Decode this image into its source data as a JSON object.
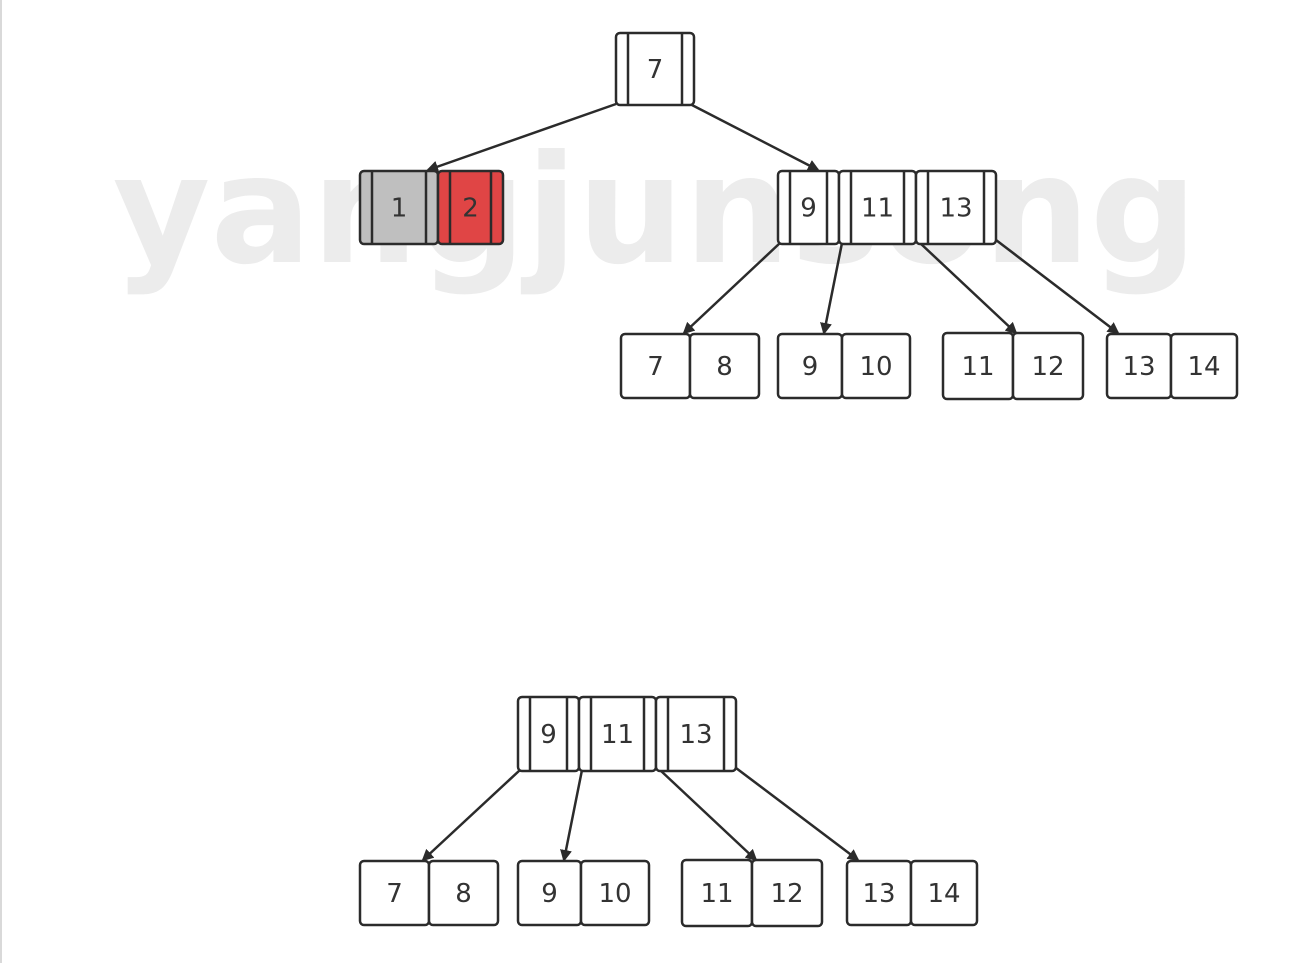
{
  "watermark": "yangjunsong",
  "colors": {
    "stroke": "#2b2b2b",
    "text": "#333333",
    "fill_default": "#ffffff",
    "fill_gray": "#bfbfbf",
    "fill_red": "#e04545",
    "watermark": "#e6e6e6"
  },
  "diagrams": [
    {
      "name": "tree-before",
      "nodes": [
        {
          "id": "root",
          "keys": [
            {
              "label": "7"
            }
          ]
        },
        {
          "id": "left-internal",
          "keys": [
            {
              "label": "1",
              "fill": "gray"
            },
            {
              "label": "2",
              "fill": "red"
            }
          ]
        },
        {
          "id": "right-internal",
          "keys": [
            {
              "label": "9"
            },
            {
              "label": "11"
            },
            {
              "label": "13"
            }
          ]
        },
        {
          "id": "leaf-7-8",
          "keys": [
            {
              "label": "7"
            },
            {
              "label": "8"
            }
          ]
        },
        {
          "id": "leaf-9-10",
          "keys": [
            {
              "label": "9"
            },
            {
              "label": "10"
            }
          ]
        },
        {
          "id": "leaf-11-12",
          "keys": [
            {
              "label": "11"
            },
            {
              "label": "12"
            }
          ]
        },
        {
          "id": "leaf-13-14",
          "keys": [
            {
              "label": "13"
            },
            {
              "label": "14"
            }
          ]
        }
      ],
      "edges": [
        {
          "from": "root",
          "to": "left-internal"
        },
        {
          "from": "root",
          "to": "right-internal"
        },
        {
          "from": "right-internal",
          "to": "leaf-7-8"
        },
        {
          "from": "right-internal",
          "to": "leaf-9-10"
        },
        {
          "from": "right-internal",
          "to": "leaf-11-12"
        },
        {
          "from": "right-internal",
          "to": "leaf-13-14"
        }
      ]
    },
    {
      "name": "tree-after",
      "nodes": [
        {
          "id": "root",
          "keys": [
            {
              "label": "9"
            },
            {
              "label": "11"
            },
            {
              "label": "13"
            }
          ]
        },
        {
          "id": "leaf-7-8",
          "keys": [
            {
              "label": "7"
            },
            {
              "label": "8"
            }
          ]
        },
        {
          "id": "leaf-9-10",
          "keys": [
            {
              "label": "9"
            },
            {
              "label": "10"
            }
          ]
        },
        {
          "id": "leaf-11-12",
          "keys": [
            {
              "label": "11"
            },
            {
              "label": "12"
            }
          ]
        },
        {
          "id": "leaf-13-14",
          "keys": [
            {
              "label": "13"
            },
            {
              "label": "14"
            }
          ]
        }
      ],
      "edges": [
        {
          "from": "root",
          "to": "leaf-7-8"
        },
        {
          "from": "root",
          "to": "leaf-9-10"
        },
        {
          "from": "root",
          "to": "leaf-11-12"
        },
        {
          "from": "root",
          "to": "leaf-13-14"
        }
      ]
    }
  ]
}
